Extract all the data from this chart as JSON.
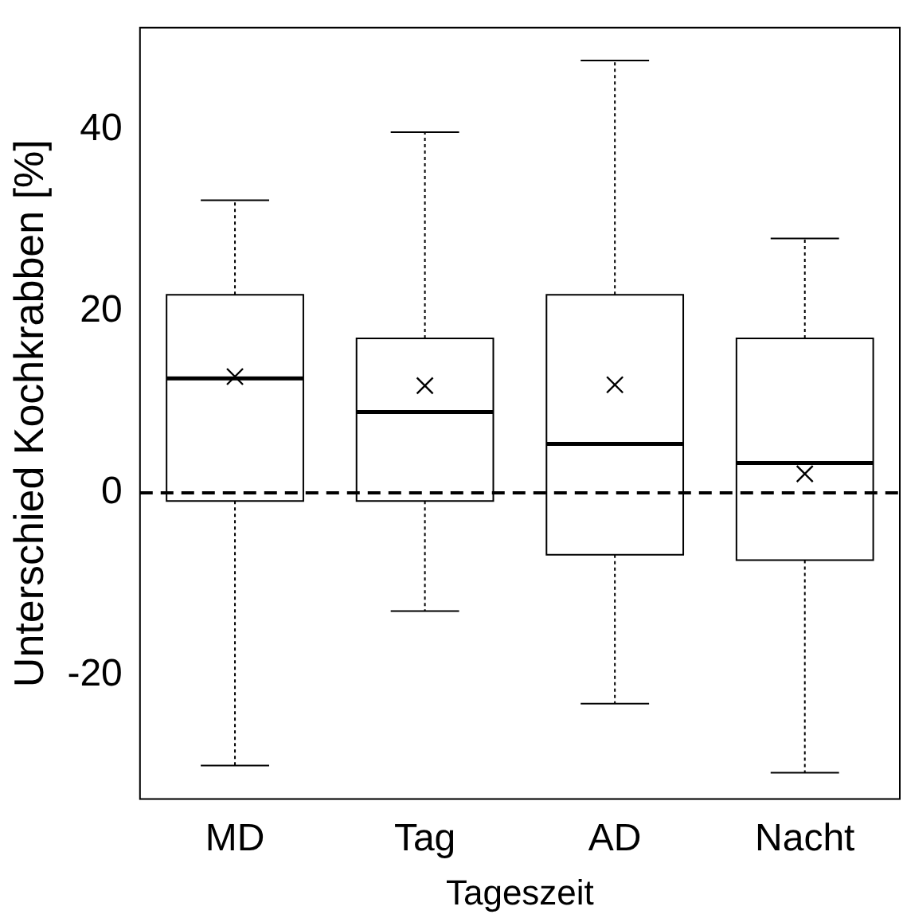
{
  "chart_data": {
    "type": "box",
    "xlabel": "Tageszeit",
    "ylabel": "Unterschied Kochkrabben [%]",
    "categories": [
      "MD",
      "Tag",
      "AD",
      "Nacht"
    ],
    "boxes": [
      {
        "low": -30,
        "q1": -0.9,
        "median": 12.6,
        "q3": 21.8,
        "high": 32.2,
        "mean": 12.8
      },
      {
        "low": -13,
        "q1": -0.9,
        "median": 8.9,
        "q3": 17,
        "high": 39.7,
        "mean": 11.8
      },
      {
        "low": -23.2,
        "q1": -6.8,
        "median": 5.4,
        "q3": 21.8,
        "high": 47.6,
        "mean": 11.9
      },
      {
        "low": -30.8,
        "q1": -7.4,
        "median": 3.3,
        "q3": 17,
        "high": 28,
        "mean": 2.1
      }
    ],
    "ylim": [
      -33.7,
      51.2
    ],
    "yticks": [
      -20,
      0,
      20,
      40
    ],
    "grid": false,
    "legend": false,
    "ref_lines": [
      {
        "axis": "y",
        "value": 0,
        "color": "#000000",
        "line_style": "dashed"
      }
    ]
  }
}
